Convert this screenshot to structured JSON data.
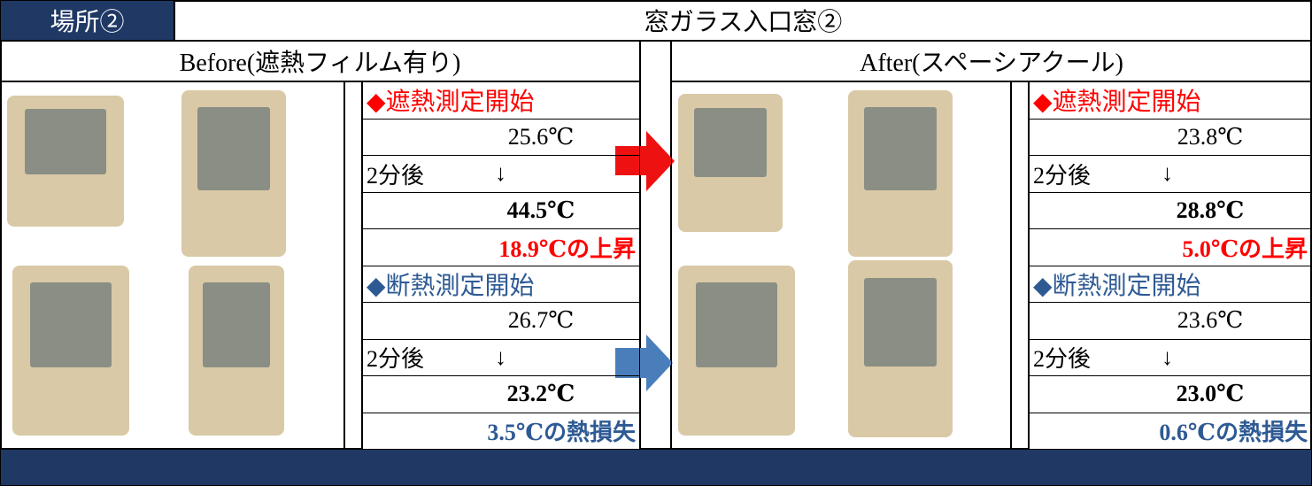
{
  "header": {
    "label": "場所②",
    "title": "窓ガラス入口窓②"
  },
  "before": {
    "heading": "Before(遮熱フィルム有り)",
    "shielding": {
      "title": "◆遮熱測定開始",
      "start": "25.6℃",
      "elapsed": "2分後",
      "arrow": "↓",
      "end": "44.5℃",
      "result": "18.9℃の上昇"
    },
    "insulation": {
      "title": "◆断熱測定開始",
      "start": "26.7℃",
      "elapsed": "2分後",
      "arrow": "↓",
      "end": "23.2℃",
      "result": "3.5℃の熱損失"
    }
  },
  "after": {
    "heading": "After(スペーシアクール)",
    "shielding": {
      "title": "◆遮熱測定開始",
      "start": "23.8℃",
      "elapsed": "2分後",
      "arrow": "↓",
      "end": "28.8℃",
      "result": "5.0℃の上昇"
    },
    "insulation": {
      "title": "◆断熱測定開始",
      "start": "23.6℃",
      "elapsed": "2分後",
      "arrow": "↓",
      "end": "23.0℃",
      "result": "0.6℃の熱損失"
    }
  }
}
